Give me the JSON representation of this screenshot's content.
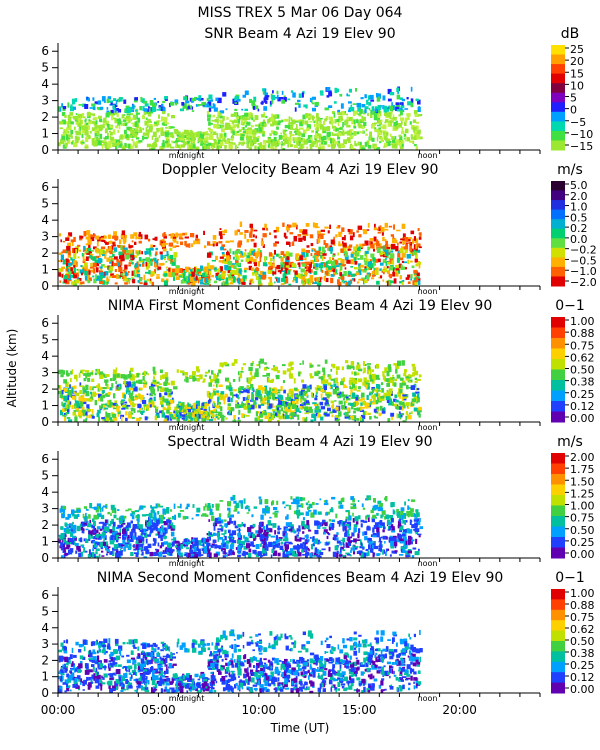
{
  "header": {
    "line1": "MISS TREX    5 Mar 06 Day 064"
  },
  "axes": {
    "ylabel": "Altitude (km)",
    "xlabel": "Time (UT)",
    "yticks": [
      "0",
      "1",
      "2",
      "3",
      "4",
      "5",
      "6"
    ],
    "xticks": [
      "00:00",
      "05:00",
      "10:00",
      "15:00",
      "20:00"
    ],
    "markers": [
      "midnight",
      "noon"
    ]
  },
  "chart_data": [
    {
      "type": "heatmap",
      "title": "SNR Beam 4 Azi  19 Elev 90",
      "units": "dB",
      "ylim": [
        0,
        6.5
      ],
      "xlim": [
        0,
        24
      ],
      "colorbar": {
        "labels": [
          "25",
          "20",
          "15",
          "10",
          "5",
          "0",
          "−5",
          "−10",
          "−15"
        ],
        "colors": [
          "#ffe000",
          "#ffa000",
          "#ff4000",
          "#e00000",
          "#800040",
          "#8000c0",
          "#2020ff",
          "#00a0ff",
          "#00d8b0",
          "#40e040",
          "#9ce830"
        ]
      },
      "data_extent_hours": [
        0,
        18
      ],
      "dominant_value_range": "-15 to -5"
    },
    {
      "type": "heatmap",
      "title": "Doppler Velocity Beam 4 Azi  19 Elev 90",
      "units": "m/s",
      "ylim": [
        0,
        6.5
      ],
      "xlim": [
        0,
        24
      ],
      "colorbar": {
        "labels": [
          "5.0",
          "2.0",
          "1.0",
          "0.5",
          "0.2",
          "0.0",
          "−0.2",
          "−0.5",
          "−1.0",
          "−2.0"
        ],
        "colors": [
          "#2a0030",
          "#400080",
          "#2030e0",
          "#0070ff",
          "#00b0d0",
          "#00d070",
          "#60e040",
          "#d0e000",
          "#ffb000",
          "#ff6000",
          "#e00000"
        ]
      },
      "data_extent_hours": [
        0,
        18
      ]
    },
    {
      "type": "heatmap",
      "title": "NIMA First Moment Confidences Beam 4 Azi  19 Elev 90",
      "units": "0−1",
      "ylim": [
        0,
        6.5
      ],
      "xlim": [
        0,
        24
      ],
      "colorbar": {
        "labels": [
          "1.00",
          "0.88",
          "0.75",
          "0.62",
          "0.50",
          "0.38",
          "0.25",
          "0.12",
          "0.00"
        ],
        "colors": [
          "#e00000",
          "#ff4000",
          "#ff9000",
          "#ffd000",
          "#c0e000",
          "#40d040",
          "#00c0a0",
          "#00a0ff",
          "#2040ff",
          "#6000b0"
        ]
      },
      "data_extent_hours": [
        0,
        18
      ]
    },
    {
      "type": "heatmap",
      "title": "Spectral Width Beam 4 Azi  19 Elev 90",
      "units": "m/s",
      "ylim": [
        0,
        6.5
      ],
      "xlim": [
        0,
        24
      ],
      "colorbar": {
        "labels": [
          "2.00",
          "1.75",
          "1.50",
          "1.25",
          "1.00",
          "0.75",
          "0.50",
          "0.25",
          "0.00"
        ],
        "colors": [
          "#e00000",
          "#ff4000",
          "#ff9000",
          "#ffd000",
          "#c0e000",
          "#40d040",
          "#00c0a0",
          "#00a0ff",
          "#2040ff",
          "#6000b0"
        ]
      },
      "data_extent_hours": [
        0,
        18
      ]
    },
    {
      "type": "heatmap",
      "title": "NIMA Second Moment Confidences Beam 4 Azi  19 Elev 90",
      "units": "0−1",
      "ylim": [
        0,
        6.5
      ],
      "xlim": [
        0,
        24
      ],
      "colorbar": {
        "labels": [
          "1.00",
          "0.88",
          "0.75",
          "0.62",
          "0.50",
          "0.38",
          "0.25",
          "0.12",
          "0.00"
        ],
        "colors": [
          "#e00000",
          "#ff4000",
          "#ff9000",
          "#ffd000",
          "#c0e000",
          "#40d040",
          "#00c0a0",
          "#00a0ff",
          "#2040ff",
          "#6000b0"
        ]
      },
      "data_extent_hours": [
        0,
        18
      ]
    }
  ]
}
